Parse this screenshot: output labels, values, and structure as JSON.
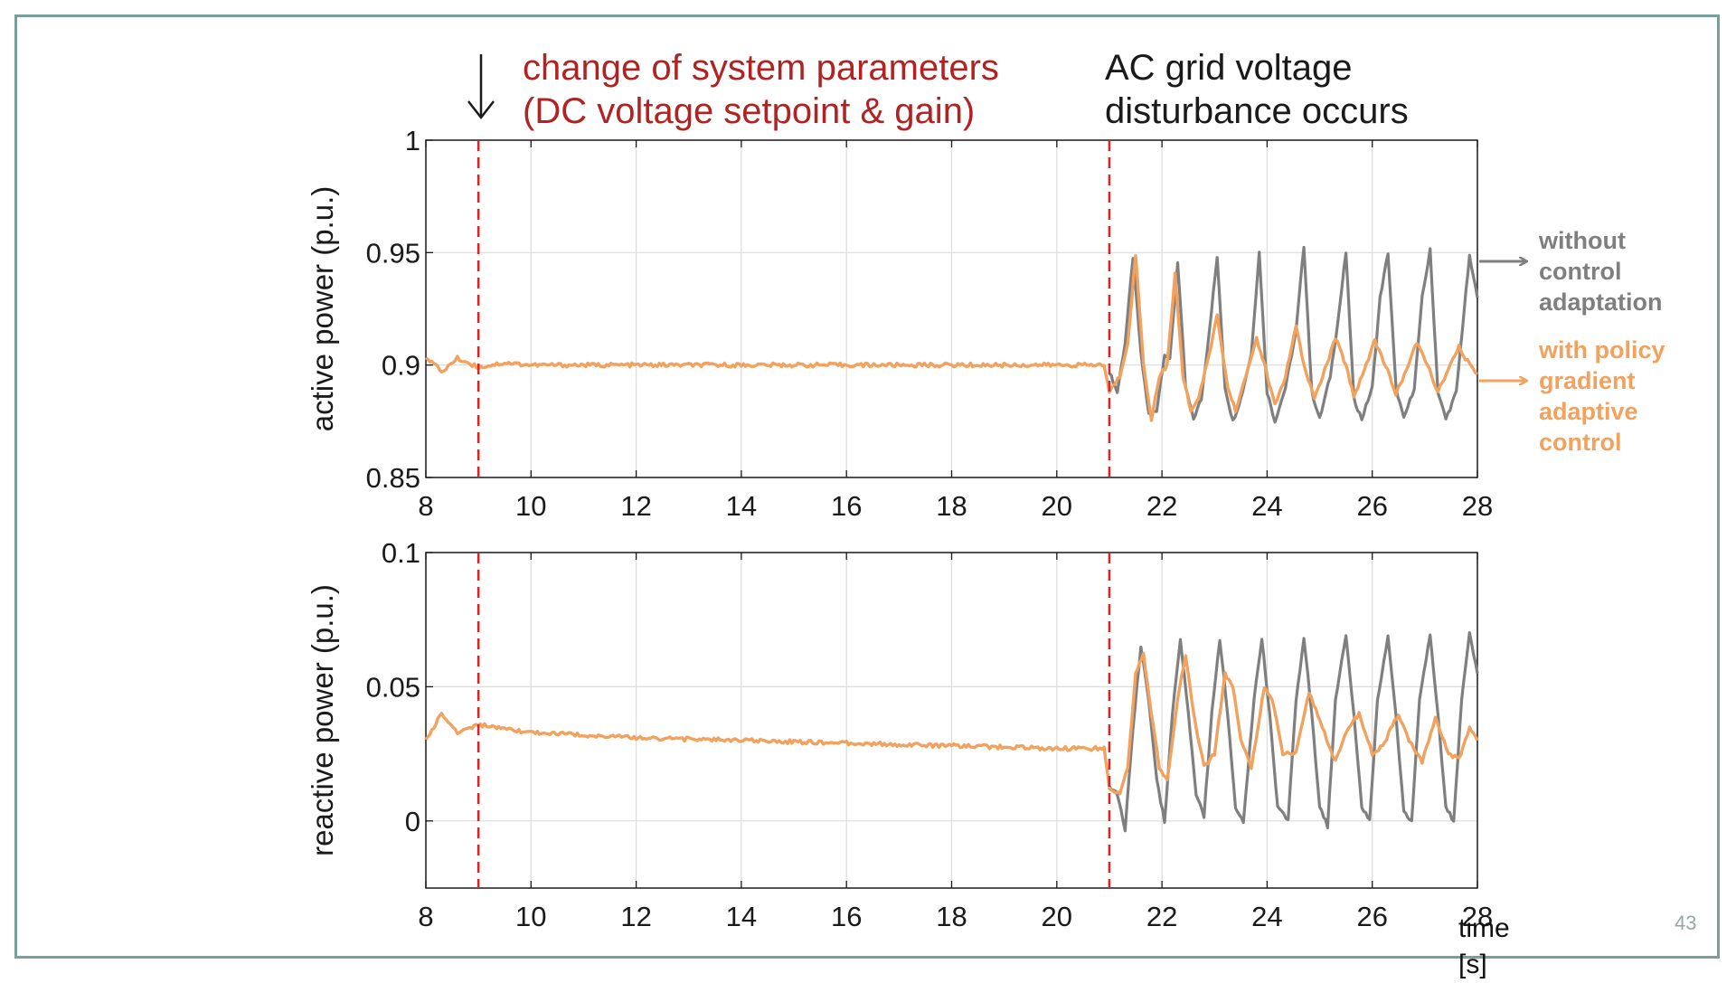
{
  "slide": {
    "page_number": "43",
    "time_label": "time [s]"
  },
  "annotations": {
    "param_change": [
      "change of system parameters",
      "(DC voltage setpoint & gain)"
    ],
    "grid_disturbance": [
      "AC grid voltage",
      "disturbance occurs"
    ]
  },
  "legend": {
    "without": {
      "lines": [
        "without",
        "control",
        "adaptation"
      ],
      "color": "#7f7f7f"
    },
    "with": {
      "lines": [
        "with policy",
        "gradient",
        "adaptive",
        "control"
      ],
      "color": "#f2a25f"
    }
  },
  "colors": {
    "event_line": "#d62728",
    "grid": "#dcdcdc",
    "axis": "#1a1a1a"
  },
  "chart_data": [
    {
      "type": "line",
      "ylabel": "active power (p.u.)",
      "xlim": [
        8,
        28
      ],
      "ylim": [
        0.85,
        1
      ],
      "xticks": [
        8,
        10,
        12,
        14,
        16,
        18,
        20,
        22,
        24,
        26,
        28
      ],
      "yticks": [
        0.85,
        0.9,
        0.95,
        1
      ],
      "ytick_labels": [
        "0.85",
        "0.9",
        "0.95",
        "1"
      ],
      "events_x": [
        9,
        21
      ],
      "series": [
        {
          "name": "without control adaptation",
          "color": "#7f7f7f",
          "points": [
            [
              21,
              0.897
            ],
            [
              21.15,
              0.888
            ],
            [
              21.3,
              0.91
            ],
            [
              21.45,
              0.948
            ],
            [
              21.6,
              0.905
            ],
            [
              21.75,
              0.878
            ],
            [
              21.9,
              0.88
            ],
            [
              22.05,
              0.905
            ],
            [
              22.15,
              0.902
            ],
            [
              22.3,
              0.946
            ],
            [
              22.45,
              0.89
            ],
            [
              22.6,
              0.876
            ],
            [
              22.75,
              0.885
            ],
            [
              22.9,
              0.915
            ],
            [
              23.05,
              0.948
            ],
            [
              23.2,
              0.89
            ],
            [
              23.35,
              0.875
            ],
            [
              23.5,
              0.885
            ],
            [
              23.7,
              0.905
            ],
            [
              23.85,
              0.95
            ],
            [
              24.0,
              0.888
            ],
            [
              24.15,
              0.875
            ],
            [
              24.35,
              0.89
            ],
            [
              24.55,
              0.915
            ],
            [
              24.7,
              0.953
            ],
            [
              24.85,
              0.888
            ],
            [
              25.0,
              0.876
            ],
            [
              25.2,
              0.895
            ],
            [
              25.35,
              0.92
            ],
            [
              25.5,
              0.95
            ],
            [
              25.65,
              0.885
            ],
            [
              25.8,
              0.876
            ],
            [
              26.0,
              0.89
            ],
            [
              26.15,
              0.93
            ],
            [
              26.3,
              0.95
            ],
            [
              26.45,
              0.89
            ],
            [
              26.6,
              0.876
            ],
            [
              26.8,
              0.89
            ],
            [
              26.95,
              0.93
            ],
            [
              27.1,
              0.951
            ],
            [
              27.25,
              0.888
            ],
            [
              27.4,
              0.876
            ],
            [
              27.6,
              0.888
            ],
            [
              27.75,
              0.925
            ],
            [
              27.85,
              0.948
            ],
            [
              28,
              0.93
            ]
          ]
        },
        {
          "name": "with policy gradient adaptive control",
          "color": "#f2a25f",
          "points": [
            [
              8,
              0.904
            ],
            [
              8.3,
              0.897
            ],
            [
              8.6,
              0.903
            ],
            [
              9,
              0.899
            ],
            [
              9.5,
              0.901
            ],
            [
              10,
              0.9
            ],
            [
              12,
              0.9
            ],
            [
              14,
              0.9
            ],
            [
              16,
              0.9
            ],
            [
              18,
              0.9
            ],
            [
              20,
              0.9
            ],
            [
              20.9,
              0.9
            ],
            [
              21.0,
              0.888
            ],
            [
              21.2,
              0.895
            ],
            [
              21.35,
              0.91
            ],
            [
              21.5,
              0.949
            ],
            [
              21.65,
              0.9
            ],
            [
              21.8,
              0.876
            ],
            [
              21.95,
              0.895
            ],
            [
              22.1,
              0.9
            ],
            [
              22.25,
              0.94
            ],
            [
              22.4,
              0.895
            ],
            [
              22.55,
              0.88
            ],
            [
              22.7,
              0.885
            ],
            [
              22.9,
              0.905
            ],
            [
              23.05,
              0.922
            ],
            [
              23.25,
              0.89
            ],
            [
              23.4,
              0.88
            ],
            [
              23.6,
              0.895
            ],
            [
              23.8,
              0.912
            ],
            [
              23.95,
              0.9
            ],
            [
              24.15,
              0.882
            ],
            [
              24.35,
              0.895
            ],
            [
              24.55,
              0.917
            ],
            [
              24.7,
              0.9
            ],
            [
              24.9,
              0.885
            ],
            [
              25.1,
              0.898
            ],
            [
              25.3,
              0.912
            ],
            [
              25.5,
              0.9
            ],
            [
              25.65,
              0.886
            ],
            [
              25.85,
              0.898
            ],
            [
              26.05,
              0.911
            ],
            [
              26.25,
              0.9
            ],
            [
              26.45,
              0.887
            ],
            [
              26.65,
              0.898
            ],
            [
              26.85,
              0.91
            ],
            [
              27.05,
              0.9
            ],
            [
              27.25,
              0.888
            ],
            [
              27.45,
              0.898
            ],
            [
              27.65,
              0.908
            ],
            [
              27.85,
              0.9
            ],
            [
              28,
              0.896
            ]
          ]
        }
      ]
    },
    {
      "type": "line",
      "ylabel": "reactive power (p.u.)",
      "xlim": [
        8,
        28
      ],
      "ylim": [
        -0.025,
        0.1
      ],
      "xticks": [
        8,
        10,
        12,
        14,
        16,
        18,
        20,
        22,
        24,
        26,
        28
      ],
      "yticks": [
        0,
        0.05,
        0.1
      ],
      "ytick_labels": [
        "0",
        "0.05",
        "0.1"
      ],
      "events_x": [
        9,
        21
      ],
      "series": [
        {
          "name": "without control adaptation",
          "color": "#7f7f7f",
          "points": [
            [
              21,
              0.013
            ],
            [
              21.15,
              0.01
            ],
            [
              21.3,
              -0.003
            ],
            [
              21.45,
              0.035
            ],
            [
              21.6,
              0.065
            ],
            [
              21.75,
              0.045
            ],
            [
              21.9,
              0.015
            ],
            [
              22.05,
              0.0
            ],
            [
              22.2,
              0.04
            ],
            [
              22.35,
              0.068
            ],
            [
              22.5,
              0.04
            ],
            [
              22.65,
              0.01
            ],
            [
              22.8,
              0.002
            ],
            [
              22.95,
              0.04
            ],
            [
              23.1,
              0.068
            ],
            [
              23.25,
              0.04
            ],
            [
              23.4,
              0.005
            ],
            [
              23.55,
              0.0
            ],
            [
              23.75,
              0.045
            ],
            [
              23.9,
              0.068
            ],
            [
              24.05,
              0.04
            ],
            [
              24.2,
              0.005
            ],
            [
              24.4,
              0.0
            ],
            [
              24.55,
              0.045
            ],
            [
              24.7,
              0.068
            ],
            [
              24.85,
              0.04
            ],
            [
              25.0,
              0.005
            ],
            [
              25.15,
              -0.002
            ],
            [
              25.3,
              0.045
            ],
            [
              25.5,
              0.069
            ],
            [
              25.65,
              0.04
            ],
            [
              25.8,
              0.005
            ],
            [
              25.95,
              0.0
            ],
            [
              26.1,
              0.045
            ],
            [
              26.3,
              0.069
            ],
            [
              26.45,
              0.04
            ],
            [
              26.6,
              0.003
            ],
            [
              26.75,
              0.0
            ],
            [
              26.9,
              0.045
            ],
            [
              27.1,
              0.07
            ],
            [
              27.25,
              0.04
            ],
            [
              27.4,
              0.005
            ],
            [
              27.55,
              0.0
            ],
            [
              27.7,
              0.045
            ],
            [
              27.85,
              0.07
            ],
            [
              28,
              0.055
            ]
          ]
        },
        {
          "name": "with policy gradient adaptive control",
          "color": "#f2a25f",
          "points": [
            [
              8,
              0.03
            ],
            [
              8.3,
              0.04
            ],
            [
              8.6,
              0.033
            ],
            [
              9,
              0.036
            ],
            [
              9.5,
              0.034
            ],
            [
              10,
              0.033
            ],
            [
              12,
              0.031
            ],
            [
              14,
              0.03
            ],
            [
              16,
              0.029
            ],
            [
              18,
              0.028
            ],
            [
              20,
              0.027
            ],
            [
              20.9,
              0.027
            ],
            [
              21.0,
              0.012
            ],
            [
              21.2,
              0.01
            ],
            [
              21.35,
              0.02
            ],
            [
              21.5,
              0.055
            ],
            [
              21.65,
              0.062
            ],
            [
              21.8,
              0.04
            ],
            [
              21.95,
              0.02
            ],
            [
              22.1,
              0.015
            ],
            [
              22.3,
              0.045
            ],
            [
              22.45,
              0.062
            ],
            [
              22.6,
              0.04
            ],
            [
              22.8,
              0.02
            ],
            [
              23.0,
              0.025
            ],
            [
              23.2,
              0.055
            ],
            [
              23.35,
              0.05
            ],
            [
              23.5,
              0.03
            ],
            [
              23.7,
              0.02
            ],
            [
              23.95,
              0.05
            ],
            [
              24.1,
              0.045
            ],
            [
              24.3,
              0.025
            ],
            [
              24.55,
              0.025
            ],
            [
              24.8,
              0.048
            ],
            [
              25.05,
              0.035
            ],
            [
              25.3,
              0.022
            ],
            [
              25.55,
              0.035
            ],
            [
              25.75,
              0.04
            ],
            [
              26.0,
              0.025
            ],
            [
              26.2,
              0.028
            ],
            [
              26.5,
              0.04
            ],
            [
              26.7,
              0.03
            ],
            [
              26.95,
              0.022
            ],
            [
              27.2,
              0.038
            ],
            [
              27.45,
              0.025
            ],
            [
              27.65,
              0.023
            ],
            [
              27.85,
              0.035
            ],
            [
              28,
              0.03
            ]
          ]
        }
      ]
    }
  ]
}
